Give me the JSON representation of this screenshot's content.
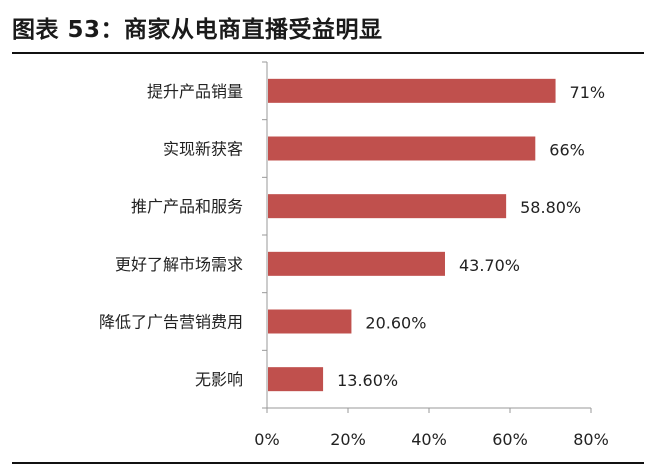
{
  "header": {
    "title": "图表 53：商家从电商直播受益明显"
  },
  "chart_data": {
    "type": "bar",
    "orientation": "horizontal",
    "categories": [
      "提升产品销量",
      "实现新获客",
      "推广产品和服务",
      "更好了解市场需求",
      "降低了广告营销费用",
      "无影响"
    ],
    "values": [
      71,
      66,
      58.8,
      43.7,
      20.6,
      13.6
    ],
    "value_labels": [
      "71%",
      "66%",
      "58.80%",
      "43.70%",
      "20.60%",
      "13.60%"
    ],
    "x_ticks": [
      "0%",
      "20%",
      "40%",
      "60%",
      "80%"
    ],
    "xlim": [
      0,
      80
    ],
    "bar_color": "#c0504d",
    "grid": false,
    "legend": "none"
  }
}
